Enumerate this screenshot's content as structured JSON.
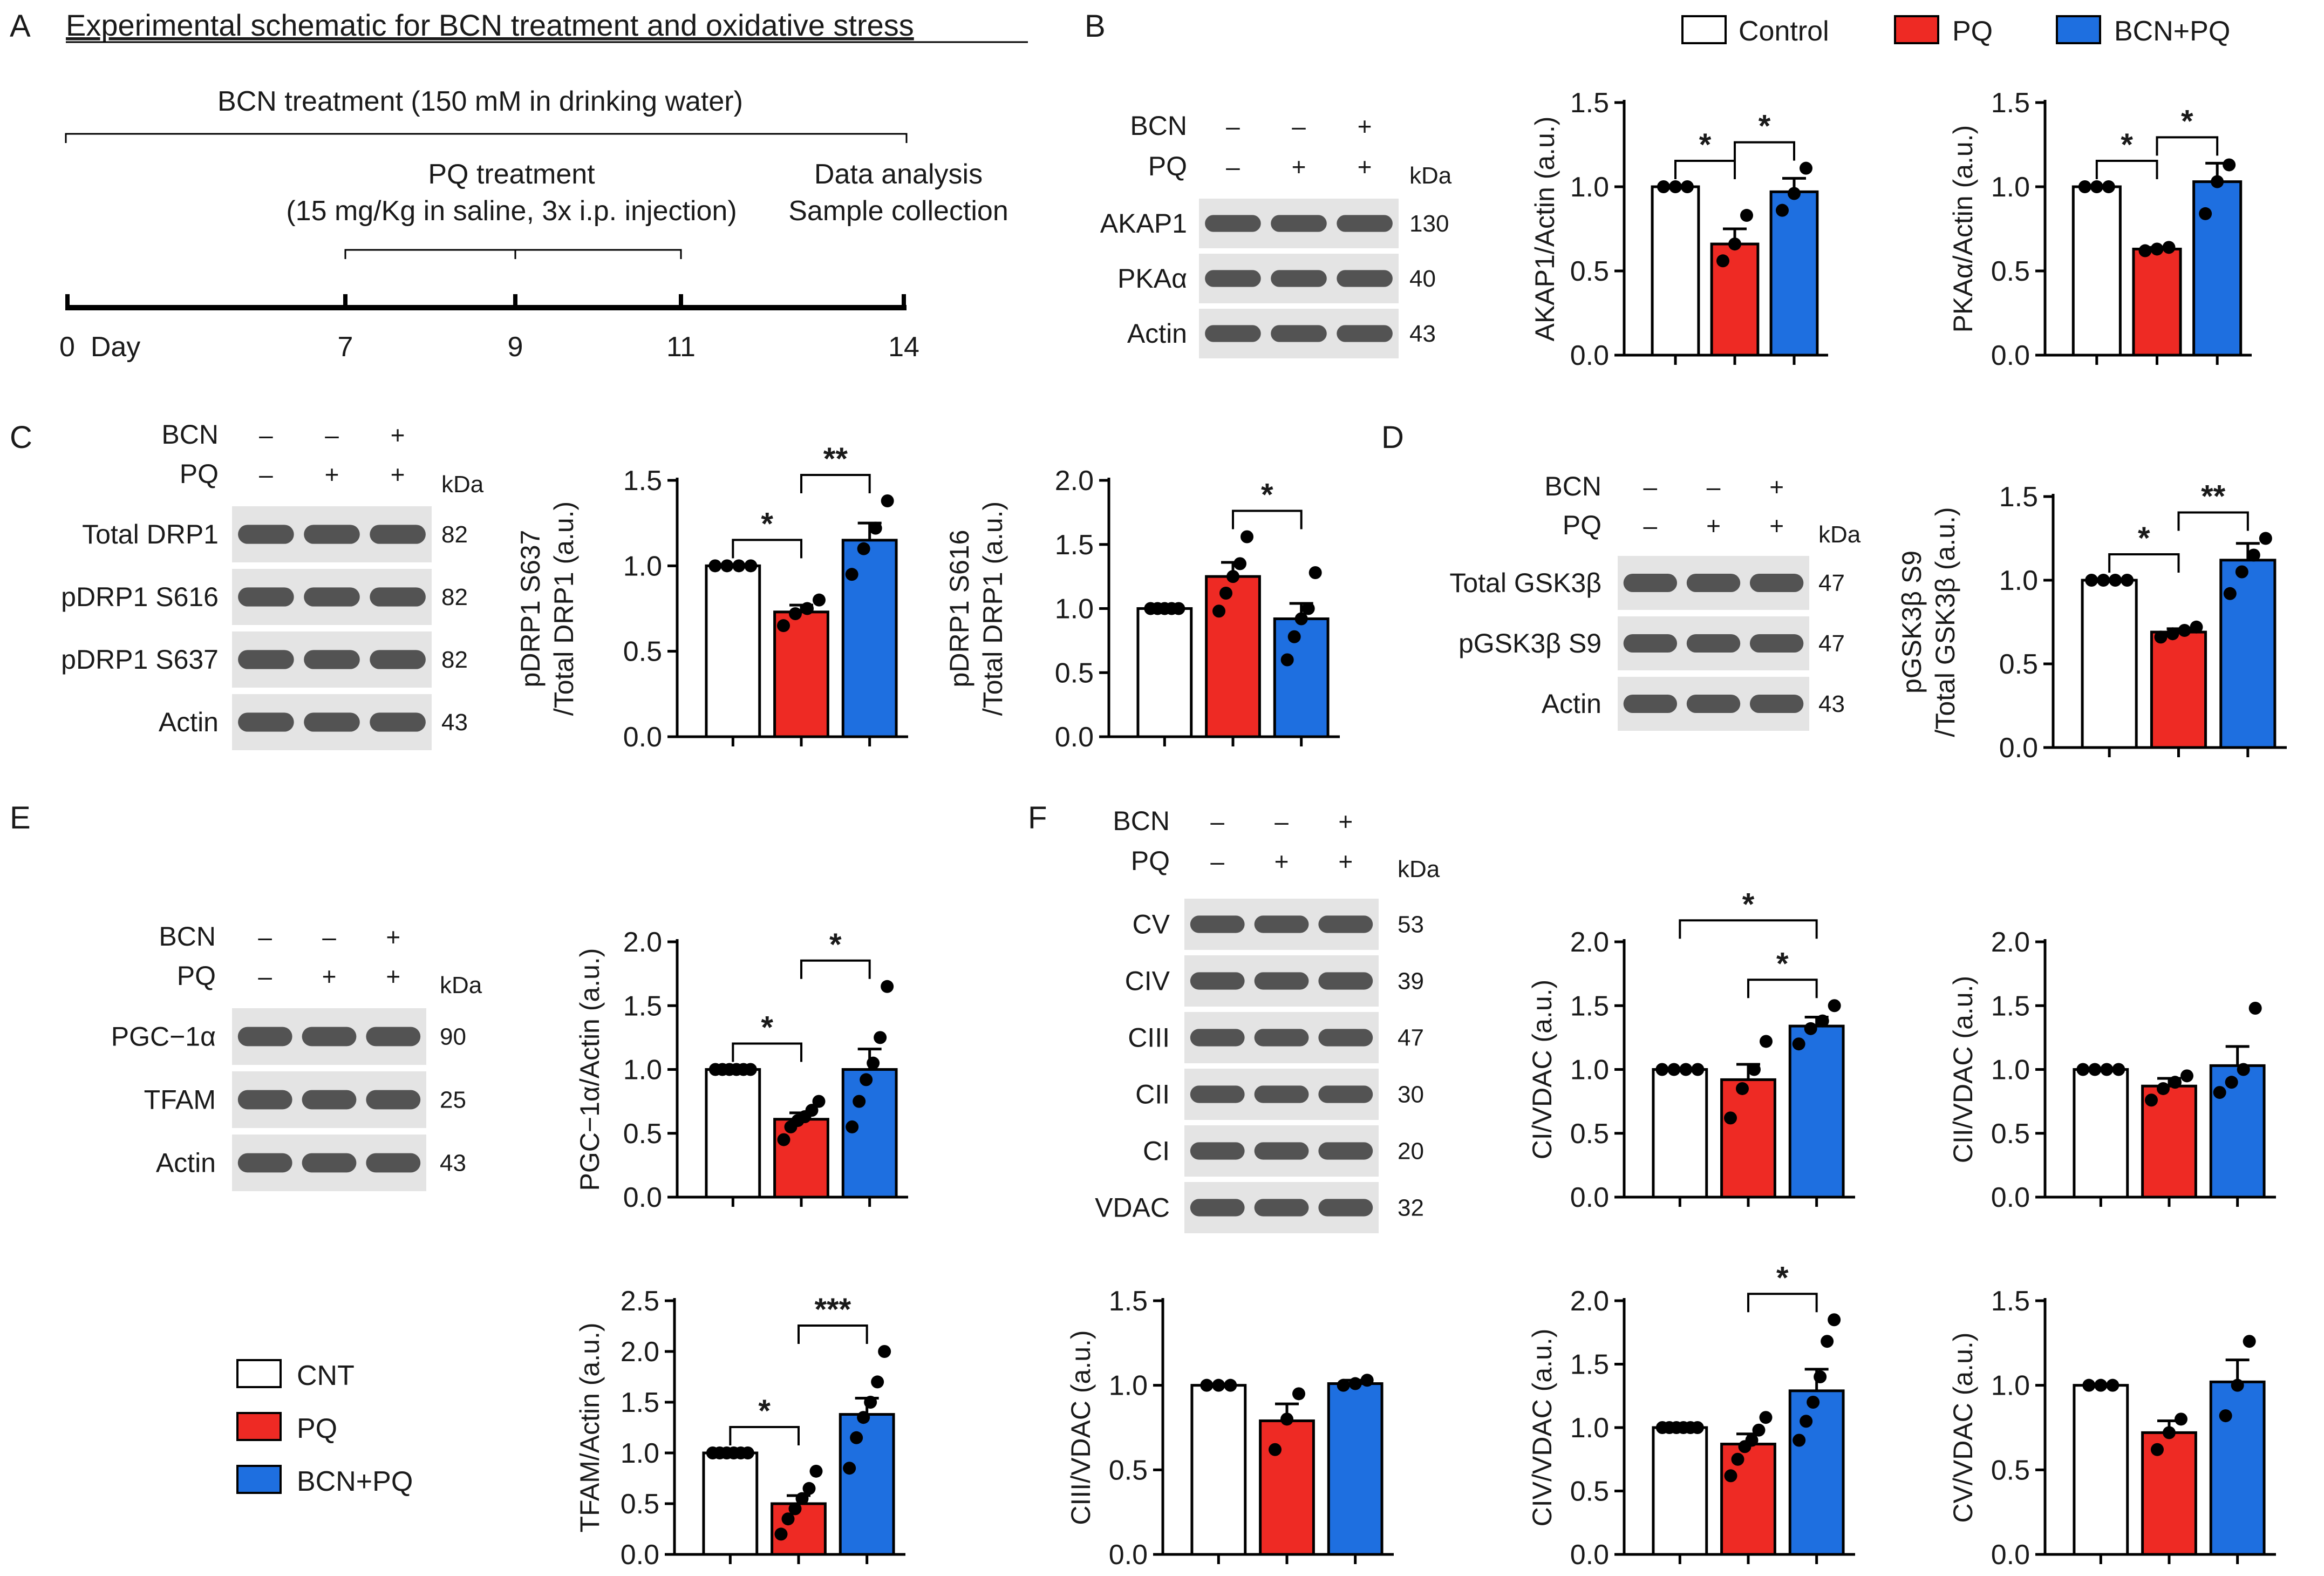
{
  "colors": {
    "control": "#ffffff",
    "pq": "#ee2a24",
    "bcn": "#1e6fe0",
    "pq_alt": "#f5314a",
    "axis": "#000000"
  },
  "panels": {
    "A": {
      "label": "A",
      "title": "Experimental schematic for BCN treatment and oxidative stress",
      "bcn_text": "BCN treatment (150 mM in drinking water)",
      "pq_text1": "PQ treatment",
      "pq_text2": "(15 mg/Kg in saline, 3x i.p. injection)",
      "data_text1": "Data analysis",
      "data_text2": "Sample collection",
      "day_label": "0  Day",
      "ticks": [
        "7",
        "9",
        "11",
        "14"
      ]
    },
    "B": {
      "label": "B"
    },
    "C": {
      "label": "C"
    },
    "D": {
      "label": "D"
    },
    "E": {
      "label": "E"
    },
    "F": {
      "label": "F"
    }
  },
  "legend_top": [
    "Control",
    "PQ",
    "BCN+PQ"
  ],
  "legend_bottom": [
    "CNT",
    "PQ",
    "BCN+PQ"
  ],
  "blots": [
    {
      "panel": "B",
      "treat_rows": [
        {
          "label": "BCN",
          "signs": [
            "–",
            "–",
            "+"
          ]
        },
        {
          "label": "PQ",
          "signs": [
            "–",
            "+",
            "+"
          ]
        }
      ],
      "kda": "kDa",
      "bands": [
        {
          "label": "AKAP1",
          "kda": "130"
        },
        {
          "label": "PKAα",
          "kda": "40"
        },
        {
          "label": "Actin",
          "kda": "43"
        }
      ]
    },
    {
      "panel": "C",
      "treat_rows": [
        {
          "label": "BCN",
          "signs": [
            "–",
            "–",
            "+"
          ]
        },
        {
          "label": "PQ",
          "signs": [
            "–",
            "+",
            "+"
          ]
        }
      ],
      "kda": "kDa",
      "bands": [
        {
          "label": "Total DRP1",
          "kda": "82"
        },
        {
          "label": "pDRP1 S616",
          "kda": "82"
        },
        {
          "label": "pDRP1 S637",
          "kda": "82"
        },
        {
          "label": "Actin",
          "kda": "43"
        }
      ]
    },
    {
      "panel": "D",
      "treat_rows": [
        {
          "label": "BCN",
          "signs": [
            "–",
            "–",
            "+"
          ]
        },
        {
          "label": "PQ",
          "signs": [
            "–",
            "+",
            "+"
          ]
        }
      ],
      "kda": "kDa",
      "bands": [
        {
          "label": "Total GSK3β",
          "kda": "47"
        },
        {
          "label": "pGSK3β S9",
          "kda": "47"
        },
        {
          "label": "Actin",
          "kda": "43"
        }
      ]
    },
    {
      "panel": "E",
      "treat_rows": [
        {
          "label": "BCN",
          "signs": [
            "–",
            "–",
            "+"
          ]
        },
        {
          "label": "PQ",
          "signs": [
            "–",
            "+",
            "+"
          ]
        }
      ],
      "kda": "kDa",
      "bands": [
        {
          "label": "PGC−1α",
          "kda": "90"
        },
        {
          "label": "TFAM",
          "kda": "25"
        },
        {
          "label": "Actin",
          "kda": "43"
        }
      ]
    },
    {
      "panel": "F",
      "treat_rows": [
        {
          "label": "BCN",
          "signs": [
            "–",
            "–",
            "+"
          ]
        },
        {
          "label": "PQ",
          "signs": [
            "–",
            "+",
            "+"
          ]
        }
      ],
      "kda": "kDa",
      "bands": [
        {
          "label": "CV",
          "kda": "53"
        },
        {
          "label": "CIV",
          "kda": "39"
        },
        {
          "label": "CIII",
          "kda": "47"
        },
        {
          "label": "CII",
          "kda": "30"
        },
        {
          "label": "CI",
          "kda": "20"
        },
        {
          "label": "VDAC",
          "kda": "32"
        }
      ]
    }
  ],
  "chart_data": [
    {
      "id": "akap1",
      "type": "bar",
      "ylabel": "AKAP1/Actin (a.u.)",
      "ylim": [
        0,
        1.5
      ],
      "yticks": [
        "0.0",
        "0.5",
        "1.0",
        "1.5"
      ],
      "categories": [
        "Control",
        "PQ",
        "BCN+PQ"
      ],
      "values": [
        1.0,
        0.66,
        0.97
      ],
      "sem": [
        0,
        0.09,
        0.08
      ],
      "points": [
        [
          1.0,
          1.0,
          1.0
        ],
        [
          0.56,
          0.66,
          0.83
        ],
        [
          0.86,
          0.96,
          1.11
        ]
      ],
      "sig": [
        {
          "from": 0,
          "to": 1,
          "label": "*"
        },
        {
          "from": 1,
          "to": 2,
          "label": "*"
        }
      ]
    },
    {
      "id": "pka",
      "type": "bar",
      "ylabel": "PKAα/Actin (a.u.)",
      "ylim": [
        0,
        1.5
      ],
      "yticks": [
        "0.0",
        "0.5",
        "1.0",
        "1.5"
      ],
      "categories": [
        "Control",
        "PQ",
        "BCN+PQ"
      ],
      "values": [
        1.0,
        0.63,
        1.03
      ],
      "sem": [
        0,
        0.01,
        0.11
      ],
      "points": [
        [
          1.0,
          1.0,
          1.0
        ],
        [
          0.62,
          0.63,
          0.64
        ],
        [
          0.84,
          1.03,
          1.13
        ]
      ],
      "sig": [
        {
          "from": 0,
          "to": 1,
          "label": "*"
        },
        {
          "from": 1,
          "to": 2,
          "label": "*"
        }
      ]
    },
    {
      "id": "s637",
      "type": "bar",
      "ylabel": "pDRP1 S637",
      "ylabel2": "/Total DRP1 (a.u.)",
      "ylim": [
        0,
        1.5
      ],
      "yticks": [
        "0.0",
        "0.5",
        "1.0",
        "1.5"
      ],
      "categories": [
        "Control",
        "PQ",
        "BCN+PQ"
      ],
      "values": [
        1.0,
        0.73,
        1.15
      ],
      "sem": [
        0,
        0.04,
        0.1
      ],
      "points": [
        [
          1.0,
          1.0,
          1.0,
          1.0
        ],
        [
          0.65,
          0.72,
          0.75,
          0.8
        ],
        [
          0.95,
          1.1,
          1.22,
          1.38
        ]
      ],
      "sig": [
        {
          "from": 0,
          "to": 1,
          "label": "*"
        },
        {
          "from": 1,
          "to": 2,
          "label": "**"
        }
      ]
    },
    {
      "id": "s616",
      "type": "bar",
      "ylabel": "pDRP1 S616",
      "ylabel2": "/Total DRP1 (a.u.)",
      "ylim": [
        0,
        2.0
      ],
      "yticks": [
        "0.0",
        "0.5",
        "1.0",
        "1.5",
        "2.0"
      ],
      "categories": [
        "Control",
        "PQ",
        "BCN+PQ"
      ],
      "values": [
        1.0,
        1.25,
        0.92
      ],
      "sem": [
        0,
        0.11,
        0.12
      ],
      "points": [
        [
          1.0,
          1.0,
          1.0,
          1.0,
          1.0
        ],
        [
          0.98,
          1.12,
          1.25,
          1.35,
          1.56
        ],
        [
          0.6,
          0.78,
          0.92,
          1.0,
          1.28
        ]
      ],
      "sig": [
        {
          "from": 1,
          "to": 2,
          "label": "*"
        }
      ]
    },
    {
      "id": "gsk",
      "type": "bar",
      "ylabel": "pGSK3β S9",
      "ylabel2": "/Total GSK3β (a.u.)",
      "ylim": [
        0,
        1.5
      ],
      "yticks": [
        "0.0",
        "0.5",
        "1.0",
        "1.5"
      ],
      "categories": [
        "Control",
        "PQ",
        "BCN+PQ"
      ],
      "values": [
        1.0,
        0.69,
        1.12
      ],
      "sem": [
        0,
        0.02,
        0.1
      ],
      "points": [
        [
          1.0,
          1.0,
          1.0,
          1.0
        ],
        [
          0.66,
          0.68,
          0.7,
          0.72
        ],
        [
          0.92,
          1.05,
          1.15,
          1.25
        ]
      ],
      "sig": [
        {
          "from": 0,
          "to": 1,
          "label": "*"
        },
        {
          "from": 1,
          "to": 2,
          "label": "**"
        }
      ]
    },
    {
      "id": "pgc",
      "type": "bar",
      "ylabel": "PGC−1α/Actin (a.u.)",
      "ylim": [
        0,
        2.0
      ],
      "yticks": [
        "0.0",
        "0.5",
        "1.0",
        "1.5",
        "2.0"
      ],
      "categories": [
        "CNT",
        "PQ",
        "BCN+PQ"
      ],
      "values": [
        1.0,
        0.61,
        1.0
      ],
      "sem": [
        0,
        0.05,
        0.16
      ],
      "points": [
        [
          1.0,
          1.0,
          1.0,
          1.0,
          1.0,
          1.0
        ],
        [
          0.45,
          0.55,
          0.6,
          0.63,
          0.68,
          0.75
        ],
        [
          0.55,
          0.75,
          0.92,
          1.05,
          1.25,
          1.65
        ]
      ],
      "sig": [
        {
          "from": 0,
          "to": 1,
          "label": "*"
        },
        {
          "from": 1,
          "to": 2,
          "label": "*"
        }
      ]
    },
    {
      "id": "tfam",
      "type": "bar",
      "ylabel": "TFAM/Actin (a.u.)",
      "ylim": [
        0,
        2.5
      ],
      "yticks": [
        "0.0",
        "0.5",
        "1.0",
        "1.5",
        "2.0",
        "2.5"
      ],
      "categories": [
        "CNT",
        "PQ",
        "BCN+PQ"
      ],
      "values": [
        1.0,
        0.5,
        1.38
      ],
      "sem": [
        0,
        0.08,
        0.16
      ],
      "points": [
        [
          1.0,
          1.0,
          1.0,
          1.0,
          1.0,
          1.0
        ],
        [
          0.2,
          0.35,
          0.45,
          0.55,
          0.65,
          0.82
        ],
        [
          0.85,
          1.15,
          1.35,
          1.5,
          1.7,
          2.0
        ]
      ],
      "sig": [
        {
          "from": 0,
          "to": 1,
          "label": "*"
        },
        {
          "from": 1,
          "to": 2,
          "label": "***"
        }
      ]
    },
    {
      "id": "ci",
      "type": "bar",
      "ylabel": "CI/VDAC (a.u.)",
      "ylim": [
        0,
        2.0
      ],
      "yticks": [
        "0.0",
        "0.5",
        "1.0",
        "1.5",
        "2.0"
      ],
      "categories": [
        "CNT",
        "PQ",
        "BCN+PQ"
      ],
      "values": [
        1.0,
        0.92,
        1.34
      ],
      "sem": [
        0,
        0.12,
        0.07
      ],
      "points": [
        [
          1.0,
          1.0,
          1.0,
          1.0
        ],
        [
          0.62,
          0.85,
          1.0,
          1.22
        ],
        [
          1.2,
          1.32,
          1.38,
          1.5
        ]
      ],
      "sig": [
        {
          "from": 0,
          "to": 2,
          "label": "*",
          "level": 2
        },
        {
          "from": 1,
          "to": 2,
          "label": "*"
        }
      ]
    },
    {
      "id": "cii",
      "type": "bar",
      "ylabel": "CII/VDAC (a.u.)",
      "ylim": [
        0,
        2.0
      ],
      "yticks": [
        "0.0",
        "0.5",
        "1.0",
        "1.5",
        "2.0"
      ],
      "categories": [
        "CNT",
        "PQ",
        "BCN+PQ"
      ],
      "values": [
        1.0,
        0.87,
        1.03
      ],
      "sem": [
        0,
        0.06,
        0.15
      ],
      "points": [
        [
          1.0,
          1.0,
          1.0,
          1.0
        ],
        [
          0.76,
          0.85,
          0.9,
          0.95
        ],
        [
          0.82,
          0.9,
          1.0,
          1.48
        ]
      ],
      "sig": []
    },
    {
      "id": "ciii",
      "type": "bar",
      "ylabel": "CIII/VDAC (a.u.)",
      "ylim": [
        0,
        1.5
      ],
      "yticks": [
        "0.0",
        "0.5",
        "1.0",
        "1.5"
      ],
      "categories": [
        "CNT",
        "PQ",
        "BCN+PQ"
      ],
      "values": [
        1.0,
        0.79,
        1.01
      ],
      "sem": [
        0,
        0.1,
        0.02
      ],
      "points": [
        [
          1.0,
          1.0,
          1.0
        ],
        [
          0.62,
          0.8,
          0.95
        ],
        [
          1.0,
          1.01,
          1.03
        ]
      ],
      "sig": []
    },
    {
      "id": "civ",
      "type": "bar",
      "ylabel": "CIV/VDAC (a.u.)",
      "ylim": [
        0,
        2.0
      ],
      "yticks": [
        "0.0",
        "0.5",
        "1.0",
        "1.5",
        "2.0"
      ],
      "categories": [
        "CNT",
        "PQ",
        "BCN+PQ"
      ],
      "values": [
        1.0,
        0.87,
        1.29
      ],
      "sem": [
        0,
        0.08,
        0.17
      ],
      "points": [
        [
          1.0,
          1.0,
          1.0,
          1.0,
          1.0,
          1.0
        ],
        [
          0.62,
          0.75,
          0.85,
          0.9,
          0.98,
          1.08
        ],
        [
          0.9,
          1.05,
          1.2,
          1.4,
          1.68,
          1.85
        ]
      ],
      "sig": [
        {
          "from": 1,
          "to": 2,
          "label": "*"
        }
      ]
    },
    {
      "id": "cv",
      "type": "bar",
      "ylabel": "CV/VDAC (a.u.)",
      "ylim": [
        0,
        1.5
      ],
      "yticks": [
        "0.0",
        "0.5",
        "1.0",
        "1.5"
      ],
      "categories": [
        "CNT",
        "PQ",
        "BCN+PQ"
      ],
      "values": [
        1.0,
        0.72,
        1.02
      ],
      "sem": [
        0,
        0.07,
        0.13
      ],
      "points": [
        [
          1.0,
          1.0,
          1.0
        ],
        [
          0.62,
          0.72,
          0.8
        ],
        [
          0.82,
          1.0,
          1.26
        ]
      ],
      "sig": []
    }
  ]
}
